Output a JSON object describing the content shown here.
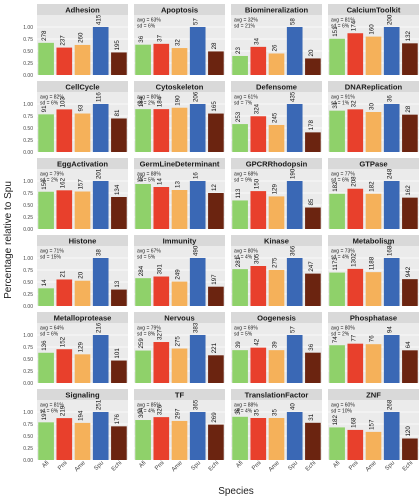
{
  "chart_data": {
    "type": "bar",
    "categories": [
      "Afi",
      "Pmi",
      "Ame",
      "Spu",
      "Echi"
    ],
    "colors": [
      "#8fd16a",
      "#e8402c",
      "#f5b15a",
      "#3a68b5",
      "#6b2410"
    ],
    "ylabel": "Percentage relative to Spu",
    "xlabel": "Species",
    "ylim": [
      0,
      1.25
    ],
    "grid": true,
    "panels": [
      {
        "name": "Adhesion",
        "values": [
          278,
          237,
          260,
          415,
          195
        ],
        "avg": "",
        "sd": ""
      },
      {
        "name": "Apoptosis",
        "values": [
          36,
          37,
          32,
          57,
          28
        ],
        "avg": "avg = 63%",
        "sd": "sd = 6%"
      },
      {
        "name": "Biomineralization",
        "values": [
          23,
          34,
          26,
          58,
          20
        ],
        "avg": "avg = 32%",
        "sd": "sd = 21%"
      },
      {
        "name": "CalciumToolkit",
        "values": [
          151,
          174,
          160,
          200,
          132
        ],
        "avg": "avg = 81%",
        "sd": "sd = 6%"
      },
      {
        "name": "CellCycle",
        "values": [
          91,
          103,
          93,
          116,
          81
        ],
        "avg": "avg = 82%",
        "sd": "sd = 6%"
      },
      {
        "name": "Cytoskeleton",
        "values": [
          184,
          184,
          190,
          206,
          165
        ],
        "avg": "avg = 80%",
        "sd": "sd = 2%"
      },
      {
        "name": "Defensome",
        "values": [
          253,
          324,
          245,
          435,
          178
        ],
        "avg": "avg = 61%",
        "sd": "sd = 7%"
      },
      {
        "name": "DNAReplication",
        "values": [
          31,
          32,
          30,
          36,
          28
        ],
        "avg": "avg = 91%",
        "sd": "sd = 1%"
      },
      {
        "name": "EggActivation",
        "values": [
          156,
          162,
          157,
          201,
          134
        ],
        "avg": "avg = 79%",
        "sd": "sd = 2%"
      },
      {
        "name": "GermLineDeterminant",
        "values": [
          15,
          14,
          13,
          16,
          12
        ],
        "avg": "avg = 88%",
        "sd": "sd = 5%"
      },
      {
        "name": "GPCRRhodopsin",
        "values": [
          113,
          150,
          129,
          190,
          85
        ],
        "avg": "avg = 68%",
        "sd": "sd = 9%"
      },
      {
        "name": "GTPase",
        "values": [
          182,
          208,
          182,
          248,
          162
        ],
        "avg": "avg = 77%",
        "sd": "sd = 6%"
      },
      {
        "name": "Histone",
        "values": [
          14,
          21,
          20,
          38,
          13
        ],
        "avg": "avg = 71%",
        "sd": "sd = 15%"
      },
      {
        "name": "Immunity",
        "values": [
          284,
          301,
          249,
          490,
          197
        ],
        "avg": "avg = 67%",
        "sd": "sd = 5%"
      },
      {
        "name": "Kinase",
        "values": [
          281,
          305,
          275,
          366,
          247
        ],
        "avg": "avg = 80%",
        "sd": "sd = 4%"
      },
      {
        "name": "Metabolism",
        "values": [
          1173,
          1302,
          1188,
          1684,
          942
        ],
        "avg": "avg = 73%",
        "sd": "sd = 4%"
      },
      {
        "name": "Metalloprotease",
        "values": [
          136,
          152,
          129,
          216,
          101
        ],
        "avg": "avg = 64%",
        "sd": "sd = 6%"
      },
      {
        "name": "Nervous",
        "values": [
          259,
          327,
          275,
          383,
          221
        ],
        "avg": "avg = 79%",
        "sd": "sd = 8%"
      },
      {
        "name": "Oogenesis",
        "values": [
          39,
          42,
          39,
          57,
          36
        ],
        "avg": "avg = 69%",
        "sd": "sd = 5%"
      },
      {
        "name": "Phosphatase",
        "values": [
          74,
          77,
          76,
          94,
          64
        ],
        "avg": "avg = 80%",
        "sd": "sd = 2%"
      },
      {
        "name": "Signaling",
        "values": [
          197,
          219,
          194,
          251,
          176
        ],
        "avg": "avg = 81%",
        "sd": "sd = 6%"
      },
      {
        "name": "TF",
        "values": [
          304,
          326,
          297,
          365,
          269
        ],
        "avg": "avg = 85%",
        "sd": "sd = 4%"
      },
      {
        "name": "TranslationFactor",
        "values": [
          36,
          35,
          35,
          40,
          31
        ],
        "avg": "avg = 88%",
        "sd": "sd = 4%"
      },
      {
        "name": "ZNF",
        "values": [
          182,
          168,
          157,
          268,
          120
        ],
        "avg": "avg = 60%",
        "sd": "sd = 10%"
      }
    ]
  }
}
